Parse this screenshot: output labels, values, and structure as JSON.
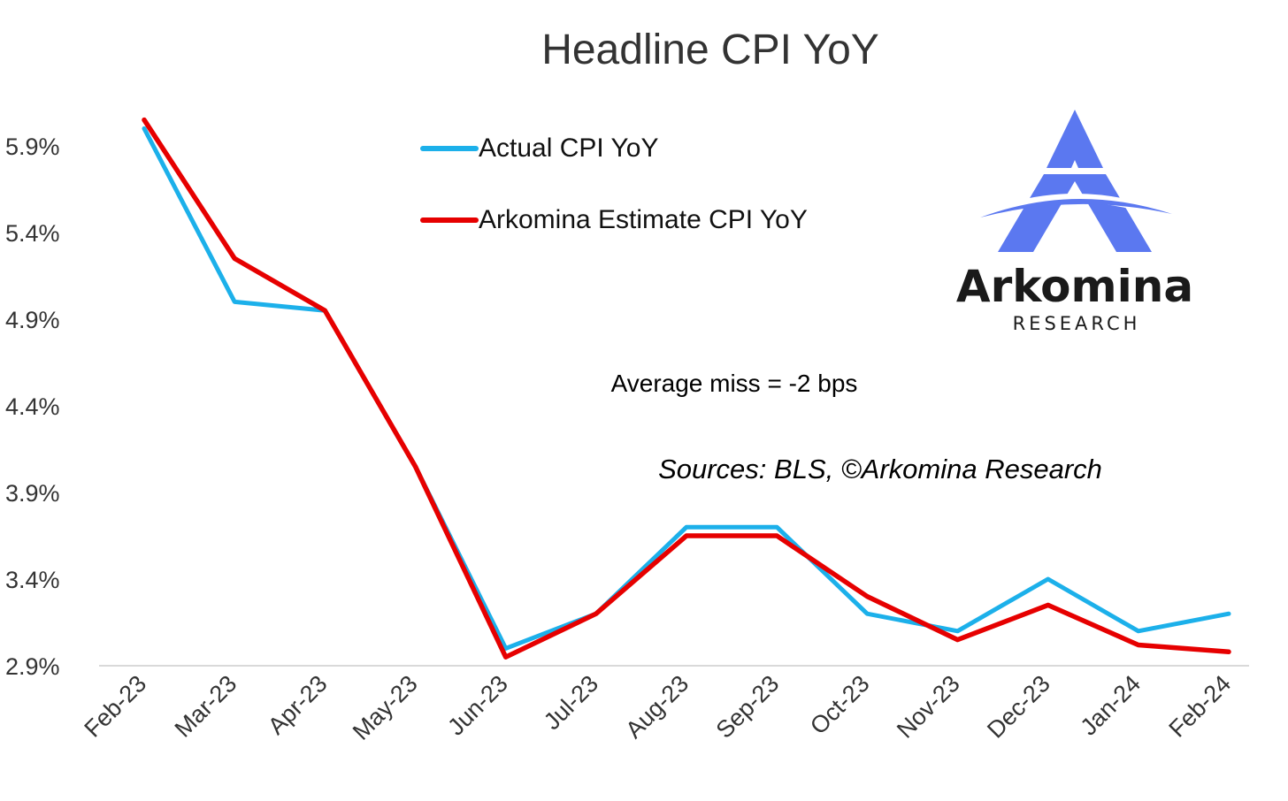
{
  "chart_data": {
    "type": "line",
    "title": "Headline CPI YoY",
    "categories": [
      "Feb-23",
      "Mar-23",
      "Apr-23",
      "May-23",
      "Jun-23",
      "Jul-23",
      "Aug-23",
      "Sep-23",
      "Oct-23",
      "Nov-23",
      "Dec-23",
      "Jan-24",
      "Feb-24"
    ],
    "series": [
      {
        "name": "Actual CPI YoY",
        "color": "#1cb0ea",
        "values": [
          6.0,
          5.0,
          4.95,
          4.05,
          3.0,
          3.2,
          3.7,
          3.7,
          3.2,
          3.1,
          3.4,
          3.1,
          3.2
        ]
      },
      {
        "name": "Arkomina Estimate CPI YoY",
        "color": "#e60000",
        "values": [
          6.05,
          5.25,
          4.95,
          4.05,
          2.95,
          3.2,
          3.65,
          3.65,
          3.3,
          3.05,
          3.25,
          3.02,
          2.98
        ]
      }
    ],
    "yticks": [
      "2.9%",
      "3.4%",
      "3.9%",
      "4.4%",
      "4.9%",
      "5.4%",
      "5.9%"
    ],
    "ytick_values": [
      2.9,
      3.4,
      3.9,
      4.4,
      4.9,
      5.4,
      5.9
    ],
    "ylim": [
      2.9,
      6.1
    ],
    "xlabel": "",
    "ylabel": "",
    "grid": false,
    "legend_position": "top-center",
    "annotations": [
      "Average miss = -2 bps",
      "Sources: BLS, ©Arkomina Research"
    ]
  },
  "logo": {
    "name": "Arkomina",
    "subtitle": "RESEARCH",
    "color": "#5b78f0"
  }
}
